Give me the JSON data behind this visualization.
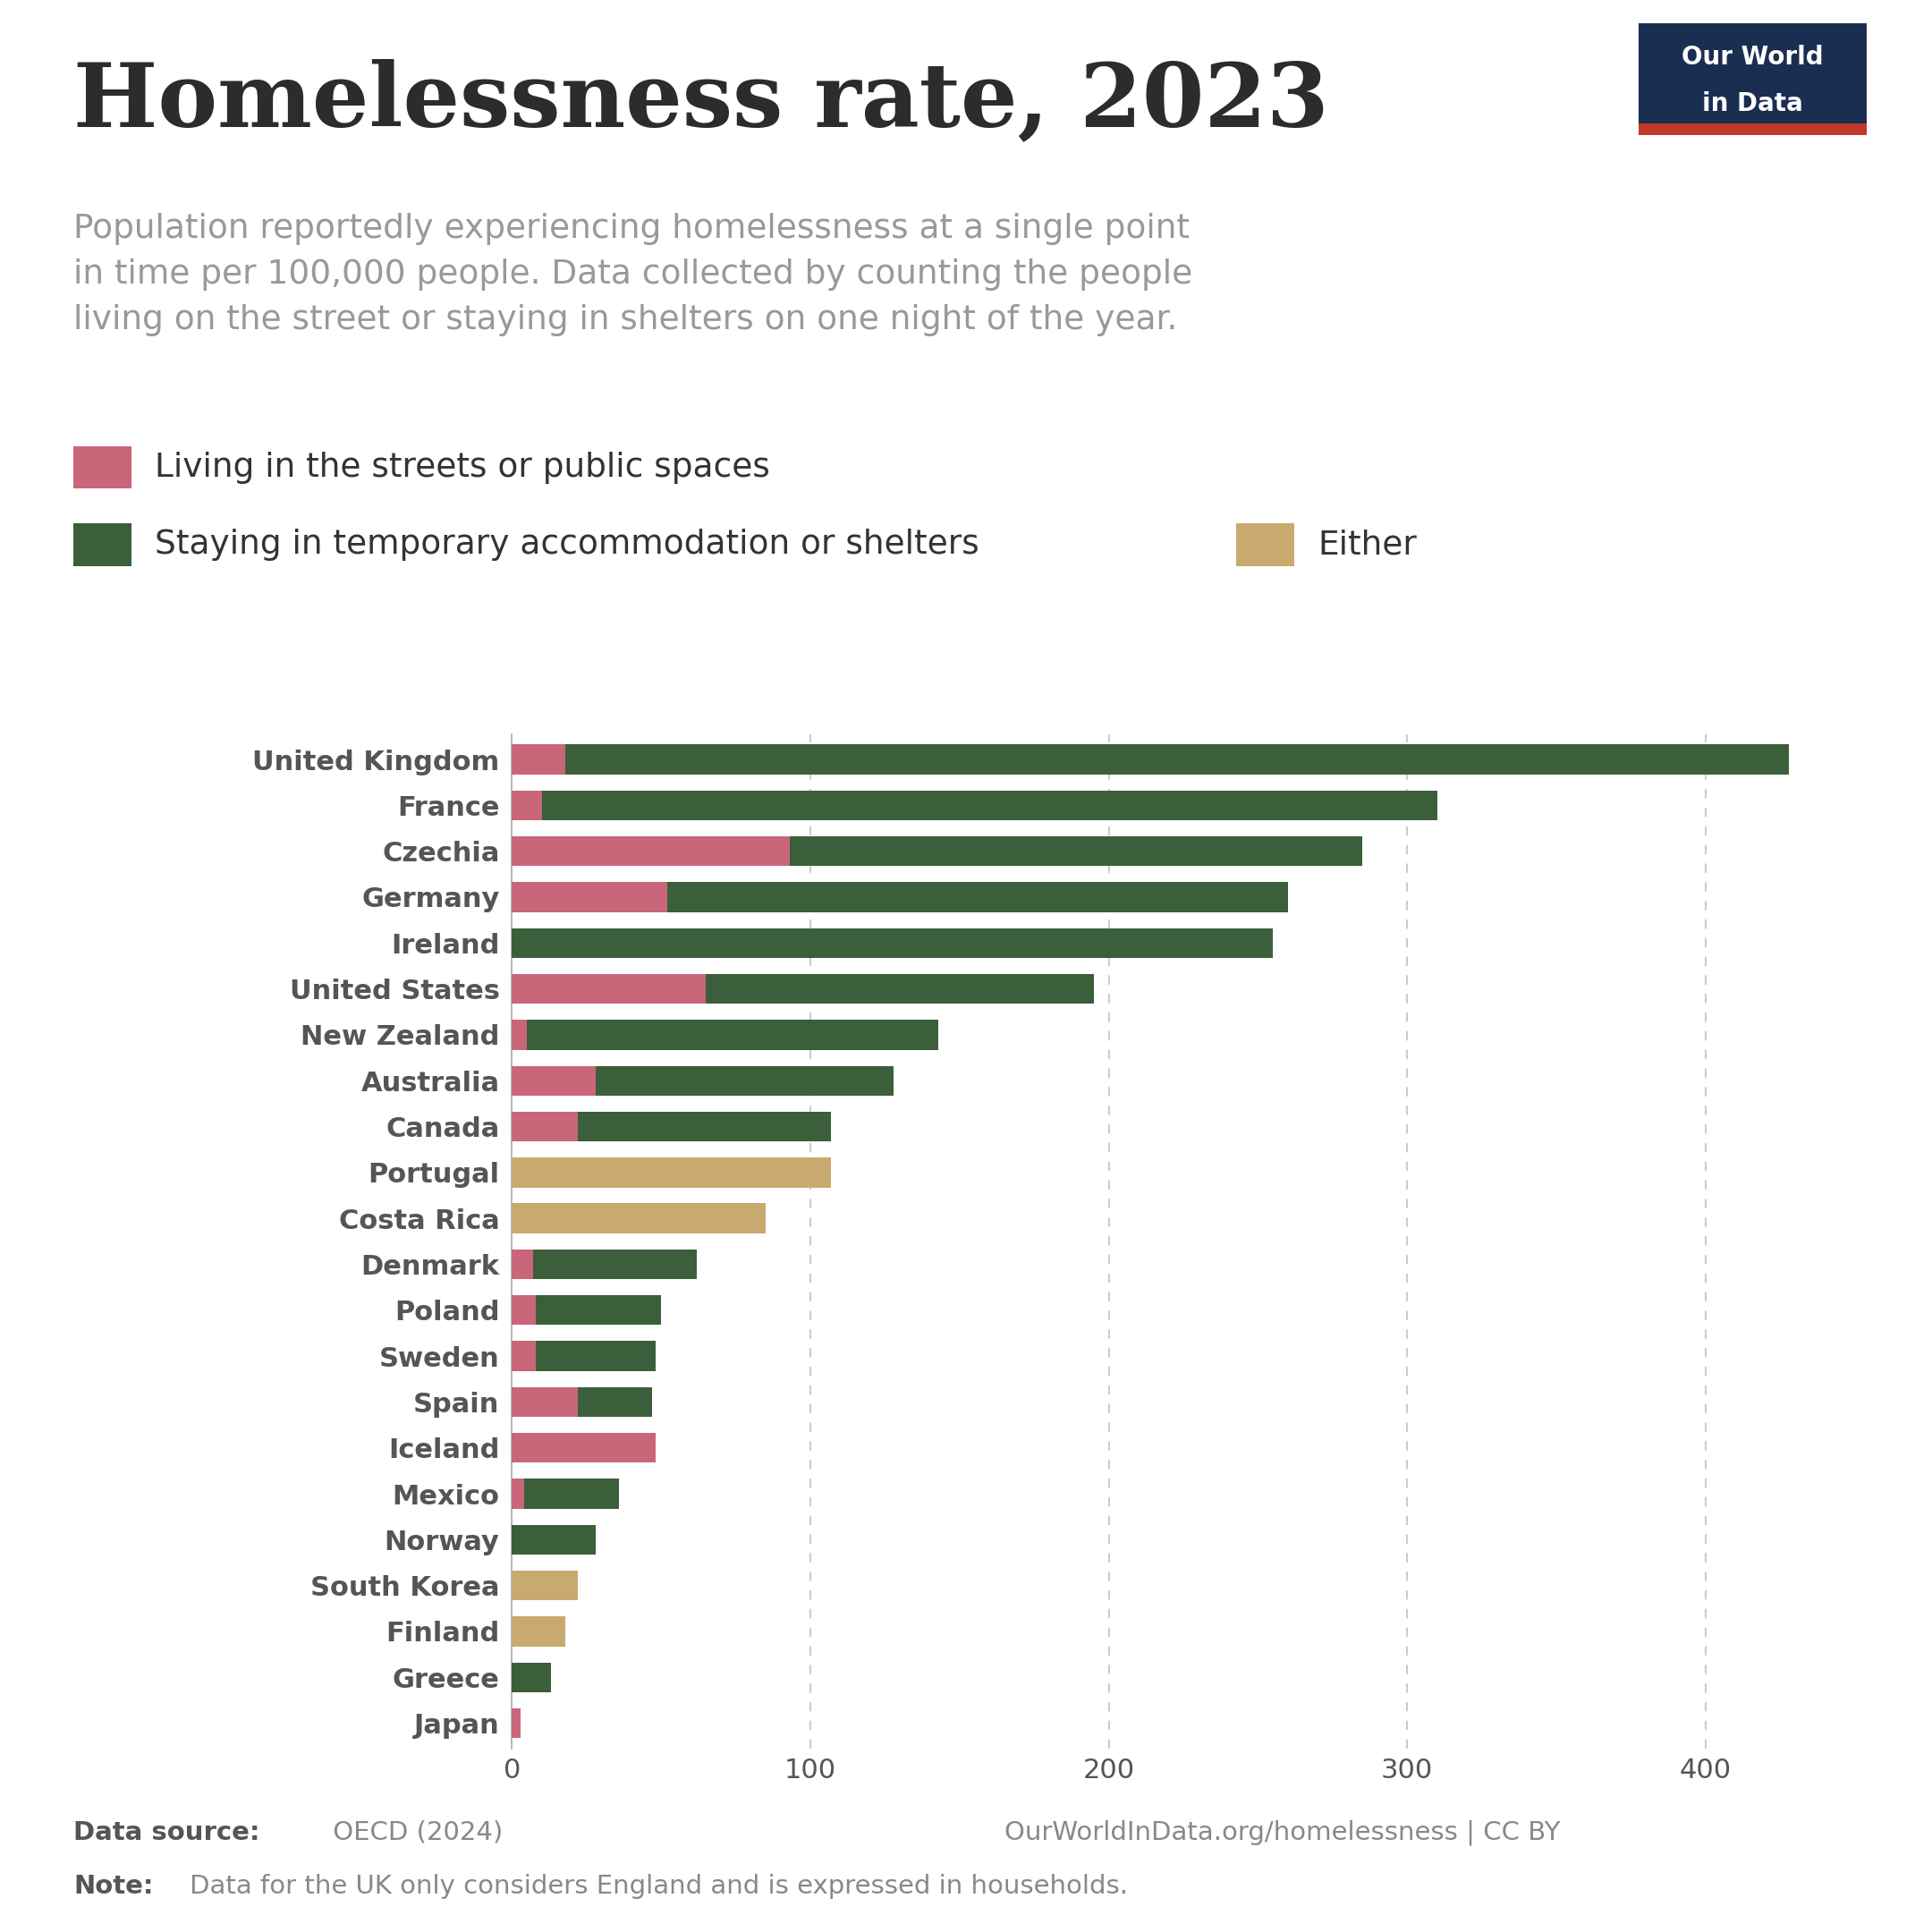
{
  "title": "Homelessness rate, 2023",
  "subtitle": "Population reportedly experiencing homelessness at a single point\nin time per 100,000 people. Data collected by counting the people\nliving on the street or staying in shelters on one night of the year.",
  "categories": [
    "United Kingdom",
    "France",
    "Czechia",
    "Germany",
    "Ireland",
    "United States",
    "New Zealand",
    "Australia",
    "Canada",
    "Portugal",
    "Costa Rica",
    "Denmark",
    "Poland",
    "Sweden",
    "Spain",
    "Iceland",
    "Mexico",
    "Norway",
    "South Korea",
    "Finland",
    "Greece",
    "Japan"
  ],
  "streets": [
    18,
    10,
    93,
    52,
    0,
    65,
    5,
    28,
    22,
    0,
    0,
    7,
    8,
    8,
    22,
    48,
    4,
    0,
    0,
    0,
    0,
    3
  ],
  "shelters": [
    410,
    300,
    192,
    208,
    255,
    130,
    138,
    100,
    85,
    0,
    0,
    55,
    42,
    40,
    25,
    0,
    32,
    28,
    0,
    0,
    13,
    0
  ],
  "either": [
    0,
    0,
    0,
    0,
    0,
    0,
    0,
    0,
    0,
    107,
    85,
    0,
    0,
    0,
    0,
    0,
    0,
    0,
    22,
    18,
    0,
    0
  ],
  "color_streets": "#c9667a",
  "color_shelters": "#3a5f3a",
  "color_either": "#c8a96e",
  "legend_labels": [
    "Living in the streets or public spaces",
    "Staying in temporary accommodation or shelters",
    "Either"
  ],
  "xlim": [
    0,
    450
  ],
  "xticks": [
    0,
    100,
    200,
    300,
    400
  ],
  "background_color": "#ffffff",
  "url": "OurWorldInData.org/homelessness | CC BY",
  "logo_bg": "#1a2e52",
  "logo_text_top": "Our World",
  "logo_text_bottom": "in Data",
  "logo_red": "#c0392b"
}
